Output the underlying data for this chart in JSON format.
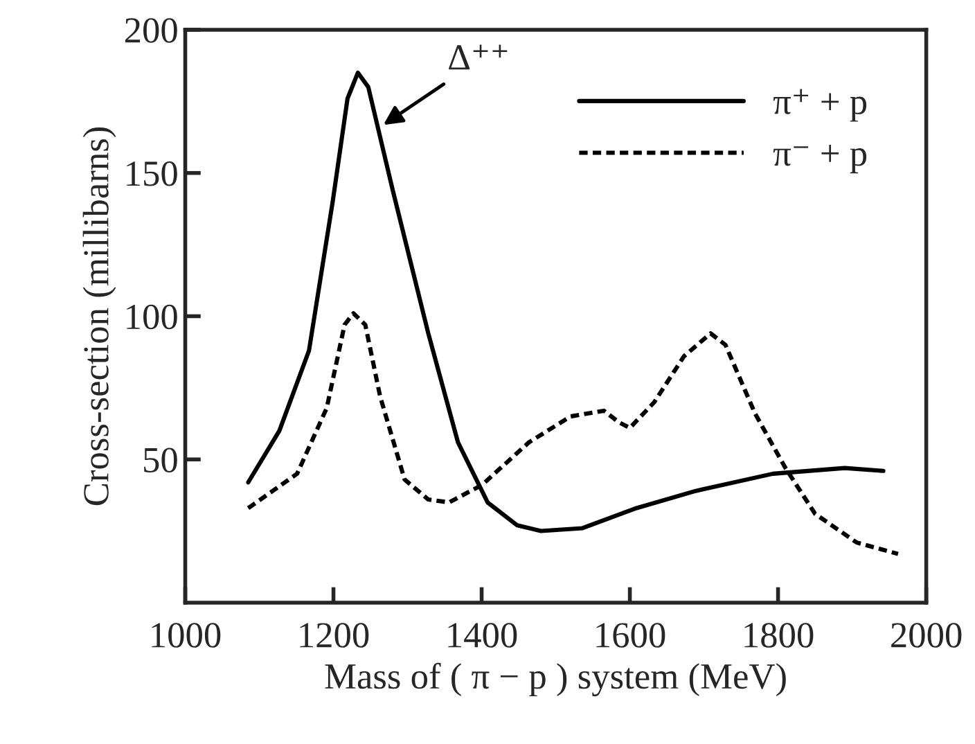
{
  "chart_data": {
    "type": "line",
    "xlabel": "Mass of ( π − p ) system (MeV)",
    "ylabel": "Cross-section (millibarns)",
    "xlim": [
      1000,
      2000
    ],
    "xticks": [
      1000,
      1200,
      1400,
      1600,
      1800,
      2000
    ],
    "ylim": [
      0,
      200
    ],
    "yticks": [
      50,
      100,
      150,
      200
    ],
    "grid": false,
    "legend": "top right",
    "marker": "none",
    "annotations": [
      {
        "text": "Δ⁺⁺",
        "x": 1263,
        "y": 166
      }
    ],
    "series": [
      {
        "name": "π⁺ + p",
        "color": "#000000",
        "line_style": "solid",
        "x": [
          1085,
          1127,
          1167,
          1199,
          1219,
          1233,
          1247,
          1280,
          1328,
          1368,
          1408,
          1448,
          1480,
          1536,
          1609,
          1689,
          1793,
          1890,
          1942
        ],
        "values": [
          42,
          60,
          88,
          140,
          176,
          185,
          180,
          144,
          94,
          56,
          35,
          27,
          25,
          26,
          33,
          39,
          45,
          47,
          46
        ]
      },
      {
        "name": "π⁻ + p",
        "color": "#000000",
        "line_style": "dashed",
        "x": [
          1085,
          1151,
          1191,
          1215,
          1227,
          1243,
          1263,
          1296,
          1328,
          1356,
          1400,
          1464,
          1520,
          1565,
          1585,
          1600,
          1633,
          1673,
          1709,
          1729,
          1769,
          1810,
          1850,
          1906,
          1962
        ],
        "values": [
          33,
          45,
          68,
          97,
          101,
          97,
          72,
          43,
          36,
          35,
          41,
          56,
          65,
          67,
          63,
          61,
          70,
          86,
          94,
          90,
          66,
          47,
          31,
          21,
          17
        ]
      }
    ]
  }
}
